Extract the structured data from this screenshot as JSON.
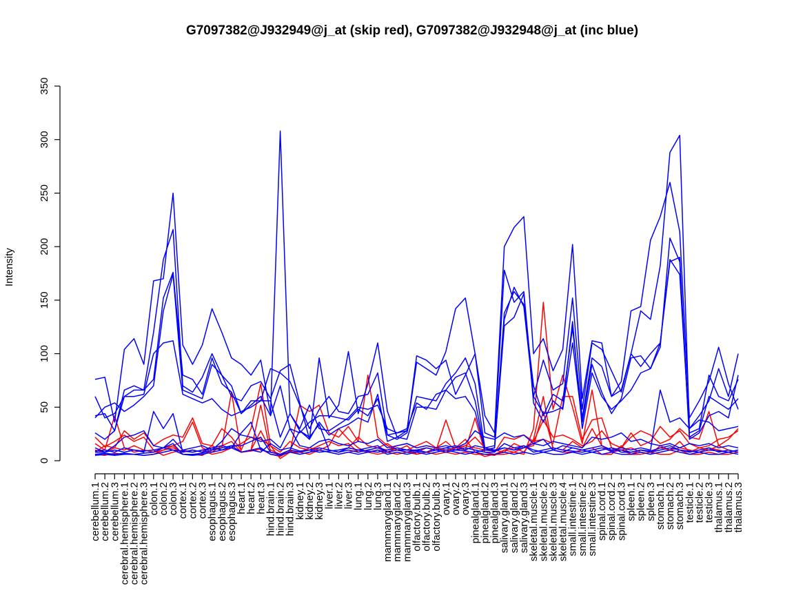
{
  "chart_data": {
    "type": "line",
    "title": "G7097382@J932949@j_at (skip red), G7097382@J932948@j_at (inc blue)",
    "xlabel": "",
    "ylabel": "Intensity",
    "ylim": [
      0,
      360
    ],
    "yticks": [
      0,
      50,
      100,
      150,
      200,
      250,
      300,
      350
    ],
    "grid": false,
    "legend": "none",
    "categories": [
      "cerebellum.1",
      "cerebellum.2",
      "cerebellum.3",
      "cerebral.hemisphere.1",
      "cerebral.hemisphere.2",
      "cerebral.hemisphere.3",
      "colon.1",
      "colon.2",
      "colon.3",
      "cortex.1",
      "cortex.2",
      "cortex.3",
      "esophagus.1",
      "esophagus.2",
      "esophagus.3",
      "heart.1",
      "heart.2",
      "heart.3",
      "hind.brain.1",
      "hind.brain.2",
      "hind.brain.3",
      "kidney.1",
      "kidney.2",
      "kidney.3",
      "liver.1",
      "liver.2",
      "liver.3",
      "lung.1",
      "lung.2",
      "lung.3",
      "mammarygland.1",
      "mammarygland.2",
      "mammarygland.3",
      "olfactory.bulb.1",
      "olfactory.bulb.2",
      "olfactory.bulb.3",
      "ovary.1",
      "ovary.2",
      "ovary.3",
      "pinealgland.1",
      "pinealgland.2",
      "pinealgland.3",
      "salivary.gland.1",
      "salivary.gland.2",
      "salivary.gland.3",
      "skeletal.muscle.1",
      "skeletal.muscle.2",
      "skeletal.muscle.3",
      "skeletal.muscle.4",
      "small.intestine.1",
      "small.intestine.2",
      "small.intestine.3",
      "spinal.cord.1",
      "spinal.cord.2",
      "spinal.cord.3",
      "spleen.1",
      "spleen.2",
      "spleen.3",
      "stomach.1",
      "stomach.2",
      "stomach.3",
      "testicle.1",
      "testicle.2",
      "testicle.3",
      "thalamus.1",
      "thalamus.2",
      "thalamus.3"
    ],
    "colors": {
      "skip": "#ff0000",
      "inc": "#0000ff"
    },
    "series": [
      {
        "group": "skip",
        "values": [
          22,
          13,
          18,
          24,
          18,
          22,
          10,
          5,
          8,
          10,
          8,
          10,
          6,
          8,
          12,
          8,
          9,
          11,
          6,
          4,
          9,
          6,
          8,
          12,
          10,
          8,
          12,
          22,
          14,
          12,
          16,
          10,
          14,
          6,
          8,
          12,
          18,
          10,
          14,
          22,
          12,
          8,
          22,
          20,
          24,
          18,
          38,
          22,
          24,
          20,
          14,
          18,
          28,
          16,
          12,
          26,
          14,
          18,
          32,
          22,
          28,
          16,
          12,
          14,
          20,
          22,
          28
        ]
      },
      {
        "group": "skip",
        "values": [
          16,
          10,
          42,
          12,
          8,
          10,
          8,
          12,
          14,
          18,
          36,
          12,
          8,
          14,
          18,
          8,
          10,
          52,
          8,
          6,
          10,
          8,
          12,
          10,
          14,
          30,
          20,
          12,
          8,
          10,
          8,
          12,
          10,
          14,
          18,
          12,
          8,
          12,
          20,
          8,
          4,
          6,
          10,
          8,
          12,
          14,
          46,
          12,
          10,
          18,
          12,
          30,
          14,
          8,
          10,
          12,
          8,
          6,
          14,
          10,
          18,
          8,
          12,
          10,
          14,
          10,
          8
        ]
      },
      {
        "group": "skip",
        "values": [
          8,
          14,
          12,
          28,
          20,
          26,
          14,
          20,
          24,
          22,
          40,
          16,
          14,
          30,
          22,
          10,
          30,
          72,
          14,
          2,
          8,
          52,
          46,
          52,
          26,
          22,
          32,
          18,
          80,
          22,
          14,
          10,
          8,
          8,
          12,
          10,
          38,
          12,
          10,
          40,
          8,
          6,
          6,
          8,
          6,
          30,
          148,
          48,
          80,
          50,
          16,
          66,
          14,
          10,
          12,
          22,
          28,
          24,
          16,
          20,
          30,
          22,
          20,
          46,
          14,
          20,
          30
        ]
      },
      {
        "group": "skip",
        "values": [
          10,
          8,
          12,
          10,
          14,
          10,
          8,
          10,
          12,
          8,
          10,
          8,
          14,
          10,
          12,
          16,
          22,
          20,
          14,
          8,
          18,
          12,
          10,
          14,
          18,
          14,
          16,
          8,
          10,
          12,
          10,
          14,
          16,
          12,
          14,
          12,
          10,
          12,
          14,
          12,
          10,
          10,
          8,
          16,
          12,
          18,
          20,
          16,
          60,
          60,
          20,
          38,
          40,
          12,
          10,
          6,
          10,
          8,
          12,
          10,
          12,
          10,
          8,
          12,
          10,
          8,
          10
        ]
      },
      {
        "group": "skip",
        "values": [
          6,
          5,
          7,
          6,
          6,
          5,
          6,
          10,
          14,
          6,
          6,
          5,
          10,
          12,
          64,
          8,
          10,
          28,
          10,
          6,
          8,
          8,
          6,
          10,
          8,
          6,
          8,
          10,
          8,
          6,
          8,
          6,
          8,
          6,
          8,
          6,
          8,
          6,
          8,
          6,
          6,
          5,
          10,
          12,
          8,
          20,
          60,
          10,
          8,
          8,
          10,
          12,
          6,
          6,
          14,
          6,
          6,
          8,
          6,
          6,
          10,
          6,
          6,
          8,
          6,
          6,
          8
        ]
      },
      {
        "group": "inc",
        "values": [
          76,
          78,
          36,
          104,
          114,
          90,
          168,
          170,
          250,
          108,
          90,
          108,
          142,
          120,
          96,
          90,
          80,
          94,
          44,
          308,
          44,
          30,
          52,
          30,
          28,
          34,
          40,
          50,
          48,
          52,
          30,
          26,
          28,
          92,
          86,
          80,
          102,
          142,
          152,
          100,
          42,
          26,
          200,
          218,
          228,
          100,
          114,
          84,
          104,
          202,
          58,
          112,
          110,
          60,
          74,
          140,
          144,
          206,
          228,
          260,
          214,
          40,
          56,
          74,
          106,
          72,
          48
        ]
      },
      {
        "group": "inc",
        "values": [
          60,
          40,
          44,
          60,
          66,
          66,
          120,
          188,
          216,
          70,
          64,
          78,
          100,
          80,
          60,
          56,
          70,
          74,
          58,
          84,
          90,
          54,
          20,
          96,
          40,
          52,
          102,
          44,
          72,
          110,
          46,
          22,
          28,
          98,
          94,
          86,
          94,
          62,
          80,
          100,
          26,
          22,
          178,
          148,
          158,
          60,
          94,
          66,
          72,
          152,
          48,
          110,
          104,
          84,
          64,
          100,
          140,
          132,
          182,
          288,
          304,
          30,
          42,
          56,
          86,
          60,
          100
        ]
      },
      {
        "group": "inc",
        "values": [
          42,
          44,
          28,
          66,
          70,
          66,
          76,
          152,
          176,
          80,
          76,
          62,
          96,
          72,
          64,
          44,
          56,
          56,
          86,
          82,
          74,
          52,
          30,
          48,
          60,
          46,
          44,
          60,
          62,
          82,
          24,
          20,
          26,
          60,
          58,
          56,
          72,
          82,
          96,
          72,
          12,
          14,
          138,
          158,
          146,
          70,
          42,
          62,
          56,
          124,
          40,
          96,
          88,
          60,
          66,
          100,
          88,
          100,
          110,
          188,
          174,
          26,
          30,
          80,
          60,
          56,
          76
        ]
      },
      {
        "group": "inc",
        "values": [
          40,
          50,
          54,
          46,
          52,
          60,
          70,
          140,
          174,
          66,
          62,
          58,
          90,
          80,
          70,
          44,
          52,
          60,
          42,
          70,
          30,
          26,
          36,
          42,
          42,
          40,
          38,
          48,
          42,
          58,
          24,
          26,
          30,
          54,
          48,
          62,
          66,
          78,
          82,
          56,
          10,
          12,
          126,
          134,
          156,
          54,
          36,
          56,
          48,
          110,
          36,
          90,
          64,
          44,
          58,
          96,
          98,
          86,
          110,
          186,
          190,
          22,
          28,
          60,
          54,
          48,
          58
        ]
      },
      {
        "group": "inc",
        "values": [
          26,
          20,
          28,
          60,
          60,
          62,
          100,
          110,
          112,
          62,
          58,
          54,
          58,
          48,
          42,
          46,
          50,
          56,
          56,
          22,
          44,
          28,
          20,
          36,
          24,
          30,
          34,
          40,
          36,
          62,
          18,
          22,
          20,
          50,
          50,
          48,
          66,
          58,
          60,
          46,
          10,
          12,
          132,
          162,
          144,
          60,
          44,
          46,
          50,
          130,
          30,
          82,
          60,
          48,
          56,
          66,
          82,
          86,
          106,
          208,
          186,
          20,
          26,
          42,
          46,
          40,
          80
        ]
      },
      {
        "group": "inc",
        "values": [
          12,
          8,
          14,
          22,
          24,
          28,
          14,
          12,
          20,
          10,
          12,
          14,
          10,
          18,
          30,
          24,
          22,
          18,
          20,
          12,
          30,
          14,
          12,
          18,
          20,
          16,
          14,
          18,
          16,
          20,
          12,
          14,
          16,
          12,
          14,
          12,
          14,
          12,
          16,
          28,
          22,
          20,
          26,
          22,
          24,
          16,
          14,
          18,
          16,
          14,
          12,
          22,
          20,
          22,
          26,
          18,
          20,
          16,
          14,
          16,
          12,
          16,
          14,
          16,
          12,
          14,
          12
        ]
      },
      {
        "group": "inc",
        "values": [
          8,
          8,
          10,
          8,
          10,
          8,
          46,
          30,
          44,
          8,
          10,
          8,
          12,
          14,
          12,
          26,
          36,
          10,
          8,
          6,
          10,
          8,
          10,
          12,
          10,
          8,
          10,
          8,
          10,
          12,
          8,
          10,
          8,
          10,
          12,
          10,
          12,
          14,
          10,
          14,
          12,
          10,
          12,
          10,
          12,
          16,
          20,
          10,
          14,
          12,
          10,
          12,
          14,
          10,
          12,
          10,
          12,
          10,
          66,
          36,
          40,
          30,
          38,
          36,
          28,
          30,
          32
        ]
      },
      {
        "group": "inc",
        "values": [
          6,
          7,
          6,
          7,
          6,
          7,
          8,
          12,
          16,
          6,
          6,
          7,
          10,
          12,
          14,
          14,
          18,
          22,
          8,
          6,
          10,
          28,
          22,
          34,
          10,
          8,
          12,
          10,
          12,
          14,
          8,
          10,
          10,
          10,
          8,
          10,
          8,
          10,
          12,
          10,
          8,
          8,
          16,
          12,
          14,
          10,
          8,
          10,
          8,
          12,
          10,
          8,
          10,
          12,
          8,
          8,
          10,
          8,
          10,
          12,
          10,
          8,
          10,
          12,
          8,
          10,
          8
        ]
      },
      {
        "group": "inc",
        "values": [
          5,
          6,
          5,
          6,
          6,
          5,
          6,
          8,
          10,
          6,
          5,
          6,
          8,
          10,
          12,
          8,
          10,
          12,
          6,
          5,
          8,
          6,
          8,
          10,
          8,
          6,
          8,
          6,
          8,
          10,
          6,
          8,
          6,
          8,
          6,
          8,
          10,
          8,
          6,
          8,
          6,
          6,
          8,
          6,
          8,
          6,
          8,
          6,
          6,
          8,
          6,
          8,
          6,
          8,
          6,
          6,
          8,
          6,
          8,
          10,
          8,
          6,
          8,
          6,
          6,
          8,
          6
        ]
      },
      {
        "group": "inc",
        "values": [
          9,
          10,
          8,
          12,
          10,
          9,
          10,
          12,
          10,
          9,
          8,
          10,
          12,
          10,
          14,
          8,
          10,
          8,
          16,
          10,
          12,
          9,
          10,
          8,
          9,
          10,
          12,
          10,
          9,
          8,
          10,
          12,
          10,
          9,
          8,
          10,
          12,
          10,
          9,
          8,
          10,
          9,
          12,
          10,
          14,
          8,
          10,
          12,
          10,
          9,
          8,
          10,
          12,
          9,
          10,
          8,
          10,
          9,
          12,
          14,
          10,
          9,
          8,
          10,
          9,
          8,
          10
        ]
      }
    ]
  }
}
